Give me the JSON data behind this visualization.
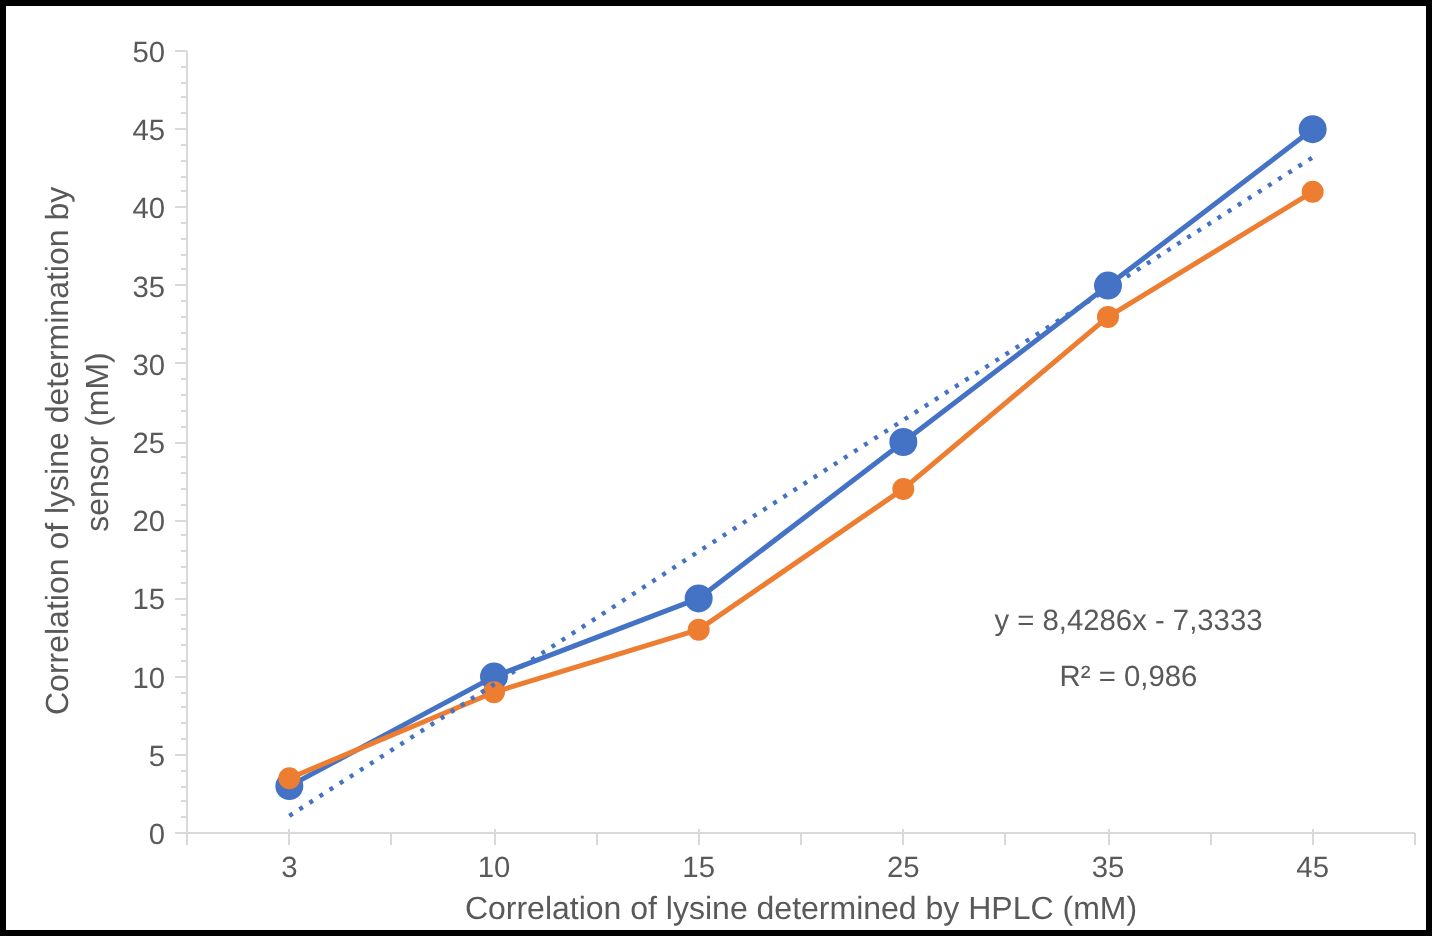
{
  "chart_data": {
    "type": "line",
    "xlabel": "Correlation of lysine determined by HPLC (mM)",
    "ylabel": "Correlation  of lysine determination  by\nsensor (mM)",
    "categories": [
      "3",
      "10",
      "15",
      "25",
      "35",
      "45"
    ],
    "series": [
      {
        "color": "#4472c4",
        "values": [
          3,
          10,
          15,
          25,
          35,
          45
        ]
      },
      {
        "color": "#ed7d31",
        "values": [
          3.5,
          9,
          13,
          22,
          33,
          41
        ]
      },
      {
        "type": "line",
        "line_style": "dotted",
        "marker": "none",
        "color": "#4472c4",
        "values": [
          1.1,
          9.5,
          18,
          26.4,
          34.8,
          43.2
        ]
      }
    ],
    "ylim": [
      0,
      50
    ],
    "yticks": [
      0,
      5,
      10,
      15,
      20,
      25,
      30,
      35,
      40,
      45,
      50
    ],
    "grid": false,
    "marker": "circle",
    "line_style": "solid",
    "annotations": [
      "y = 8,4286x - 7,3333",
      "R² = 0,986"
    ]
  }
}
